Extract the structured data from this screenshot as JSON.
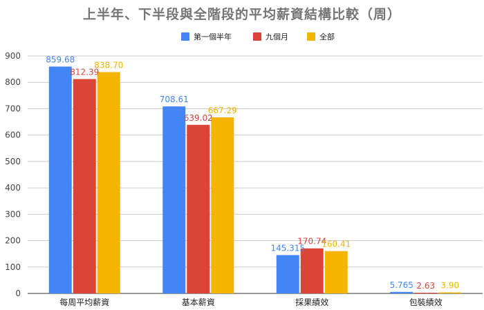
{
  "chart_data": {
    "type": "bar",
    "title": "上半年、下半段與全階段的平均薪資結構比較（周）",
    "categories": [
      "每周平均薪資",
      "基本薪資",
      "採果績效",
      "包裝績效"
    ],
    "series": [
      {
        "name": "第一個半年",
        "color": "#4285F4",
        "values": [
          859.68,
          708.61,
          145.315,
          5.765
        ],
        "labels": [
          "859.68",
          "708.61",
          "145.315",
          "5.765"
        ]
      },
      {
        "name": "九個月",
        "color": "#DB4437",
        "values": [
          812.39,
          639.02,
          170.74,
          2.63
        ],
        "labels": [
          "812.39",
          "639.02",
          "170.74",
          "2.63"
        ]
      },
      {
        "name": "全部",
        "color": "#F4B400",
        "values": [
          838.7,
          667.29,
          160.41,
          3.9
        ],
        "labels": [
          "838.70",
          "667.29",
          "160.41",
          "3.90"
        ]
      }
    ],
    "yticks": [
      "0",
      "100",
      "200",
      "300",
      "400",
      "500",
      "600",
      "700",
      "800",
      "900"
    ],
    "ylim": [
      0,
      900
    ],
    "xlabel": "",
    "ylabel": "",
    "legend_position": "top",
    "grid": true
  }
}
